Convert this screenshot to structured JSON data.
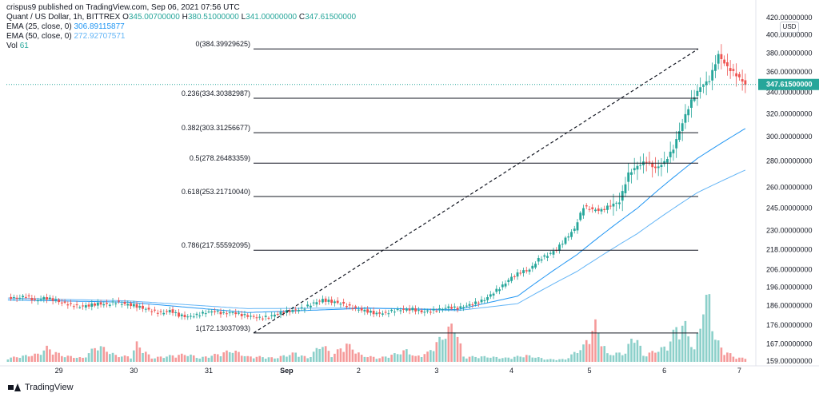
{
  "header": {
    "published": "crispus9 published on TradingView.com, Sep 06, 2021 07:56 UTC",
    "symbol": "Quant / US Dollar, 1h, BITTREX",
    "ohlc": {
      "o_label": "O",
      "o": "345.00700000",
      "h_label": "H",
      "h": "380.51000000",
      "l_label": "L",
      "l": "341.00000000",
      "c_label": "C",
      "c": "347.61500000"
    },
    "ema25": {
      "label": "EMA (25, close, 0)",
      "value": "306.89115877"
    },
    "ema50": {
      "label": "EMA (50, close, 0)",
      "value": "272.92707571"
    },
    "vol": {
      "label": "Vol",
      "value": "61"
    }
  },
  "footer": {
    "brand": "TradingView"
  },
  "chart_data": {
    "type": "candlestick",
    "y_axis": {
      "scale": "log",
      "currency": "USD",
      "ticks": [
        "420.00000000",
        "400.00000000",
        "380.00000000",
        "360.00000000",
        "340.00000000",
        "320.00000000",
        "300.00000000",
        "280.00000000",
        "260.00000000",
        "245.00000000",
        "230.00000000",
        "218.00000000",
        "206.00000000",
        "196.00000000",
        "186.00000000",
        "176.00000000",
        "167.00000000",
        "159.00000000"
      ],
      "range": [
        159,
        420
      ]
    },
    "x_axis": {
      "ticks": [
        "29",
        "30",
        "31",
        "Sep",
        "2",
        "3",
        "4",
        "5",
        "6",
        "7"
      ]
    },
    "last_price": 347.615,
    "fibonacci": [
      {
        "label": "0(384.39929625)",
        "value": 384.39929625
      },
      {
        "label": "0.236(334.30382987)",
        "value": 334.30382987
      },
      {
        "label": "0.382(303.31256677)",
        "value": 303.31256677
      },
      {
        "label": "0.5(278.26483359)",
        "value": 278.26483359
      },
      {
        "label": "0.618(253.21710040)",
        "value": 253.2171004
      },
      {
        "label": "0.786(217.55592095)",
        "value": 217.55592095
      },
      {
        "label": "1(172.13037093)",
        "value": 172.13037093
      }
    ],
    "trend_line": {
      "from": {
        "x": "Aug 31",
        "y": 172.13
      },
      "to": {
        "x": "Sep 6",
        "y": 384.4
      }
    },
    "colors": {
      "up": "#26a69a",
      "down": "#ef5350",
      "ema25": "#2196f3",
      "ema50": "#64b5f6",
      "vol_up": "#80cbc4",
      "vol_down": "#f48f8f"
    },
    "price_path": [
      [
        0,
        190.5
      ],
      [
        3,
        189.8
      ],
      [
        6,
        191.2
      ],
      [
        9,
        188.6
      ],
      [
        12,
        190.1
      ],
      [
        15,
        189.2
      ],
      [
        18,
        187.6
      ],
      [
        21,
        186.3
      ],
      [
        24,
        185.4
      ],
      [
        27,
        186.1
      ],
      [
        30,
        187.0
      ],
      [
        33,
        186.6
      ],
      [
        36,
        187.9
      ],
      [
        39,
        186.8
      ],
      [
        42,
        186.1
      ],
      [
        45,
        184.7
      ],
      [
        48,
        183.2
      ],
      [
        51,
        182.1
      ],
      [
        54,
        183.5
      ],
      [
        57,
        181.0
      ],
      [
        60,
        180.2
      ],
      [
        63,
        181.1
      ],
      [
        66,
        182.5
      ],
      [
        69,
        183.0
      ],
      [
        72,
        181.9
      ],
      [
        75,
        182.4
      ],
      [
        78,
        181.2
      ],
      [
        81,
        180.4
      ],
      [
        84,
        179.6
      ],
      [
        87,
        180.2
      ],
      [
        90,
        181.8
      ],
      [
        93,
        183.0
      ],
      [
        96,
        183.6
      ],
      [
        99,
        185.0
      ],
      [
        102,
        187.3
      ],
      [
        105,
        189.0
      ],
      [
        108,
        188.1
      ],
      [
        111,
        187.2
      ],
      [
        114,
        185.3
      ],
      [
        117,
        184.0
      ],
      [
        120,
        183.0
      ],
      [
        123,
        181.8
      ],
      [
        126,
        182.2
      ],
      [
        129,
        183.5
      ],
      [
        132,
        183.9
      ],
      [
        135,
        184.1
      ],
      [
        138,
        182.7
      ],
      [
        141,
        183.2
      ],
      [
        144,
        184.0
      ],
      [
        147,
        185.2
      ],
      [
        150,
        184.6
      ],
      [
        153,
        186.0
      ],
      [
        156,
        187.4
      ],
      [
        159,
        189.2
      ],
      [
        162,
        193.0
      ],
      [
        165,
        196.8
      ],
      [
        168,
        201.5
      ],
      [
        171,
        204.5
      ],
      [
        174,
        205.8
      ],
      [
        177,
        212.0
      ],
      [
        180,
        214.5
      ],
      [
        183,
        218.0
      ],
      [
        186,
        224.6
      ],
      [
        189,
        231.0
      ],
      [
        192,
        246.0
      ],
      [
        195,
        244.0
      ],
      [
        198,
        243.5
      ],
      [
        201,
        247.0
      ],
      [
        204,
        249.5
      ],
      [
        207,
        270.0
      ],
      [
        210,
        276.0
      ],
      [
        213,
        280.0
      ],
      [
        216,
        274.0
      ],
      [
        219,
        279.0
      ],
      [
        222,
        290.0
      ],
      [
        225,
        312.0
      ],
      [
        228,
        332.0
      ],
      [
        231,
        345.0
      ],
      [
        234,
        352.0
      ],
      [
        237,
        378.0
      ],
      [
        240,
        365.0
      ],
      [
        243,
        357.0
      ],
      [
        246,
        347.615
      ]
    ],
    "ema25_path": [
      [
        0,
        189.0
      ],
      [
        40,
        187.8
      ],
      [
        80,
        182.4
      ],
      [
        120,
        184.6
      ],
      [
        150,
        183.9
      ],
      [
        170,
        191.0
      ],
      [
        190,
        215.0
      ],
      [
        210,
        245.0
      ],
      [
        230,
        282.0
      ],
      [
        246,
        306.9
      ]
    ],
    "ema50_path": [
      [
        0,
        190.0
      ],
      [
        40,
        188.5
      ],
      [
        80,
        184.4
      ],
      [
        120,
        184.8
      ],
      [
        150,
        183.4
      ],
      [
        170,
        187.0
      ],
      [
        190,
        205.0
      ],
      [
        210,
        228.0
      ],
      [
        230,
        256.0
      ],
      [
        246,
        272.9
      ]
    ],
    "x_tick_bars": [
      17,
      42,
      67,
      93,
      117,
      143,
      168,
      194,
      219,
      244
    ],
    "volume_path": [
      [
        0,
        3
      ],
      [
        10,
        6
      ],
      [
        13,
        11
      ],
      [
        18,
        5
      ],
      [
        25,
        3
      ],
      [
        30,
        13
      ],
      [
        36,
        5
      ],
      [
        41,
        4
      ],
      [
        43,
        14
      ],
      [
        48,
        3
      ],
      [
        55,
        5
      ],
      [
        60,
        6
      ],
      [
        64,
        3
      ],
      [
        70,
        6
      ],
      [
        75,
        9
      ],
      [
        80,
        4
      ],
      [
        84,
        4
      ],
      [
        89,
        3
      ],
      [
        96,
        7
      ],
      [
        100,
        3
      ],
      [
        105,
        14
      ],
      [
        108,
        5
      ],
      [
        113,
        14
      ],
      [
        118,
        5
      ],
      [
        124,
        3
      ],
      [
        129,
        6
      ],
      [
        133,
        9
      ],
      [
        136,
        4
      ],
      [
        140,
        7
      ],
      [
        149,
        30
      ],
      [
        152,
        4
      ],
      [
        160,
        4
      ],
      [
        166,
        3
      ],
      [
        173,
        5
      ],
      [
        180,
        2
      ],
      [
        186,
        2
      ],
      [
        192,
        12
      ],
      [
        196,
        29
      ],
      [
        200,
        6
      ],
      [
        206,
        7
      ],
      [
        209,
        23
      ],
      [
        212,
        5
      ],
      [
        220,
        12
      ],
      [
        223,
        27
      ],
      [
        226,
        28
      ],
      [
        229,
        9
      ],
      [
        232,
        43
      ],
      [
        234,
        50
      ],
      [
        236,
        18
      ],
      [
        239,
        8
      ],
      [
        241,
        6
      ],
      [
        243,
        3
      ],
      [
        246,
        3
      ]
    ]
  }
}
